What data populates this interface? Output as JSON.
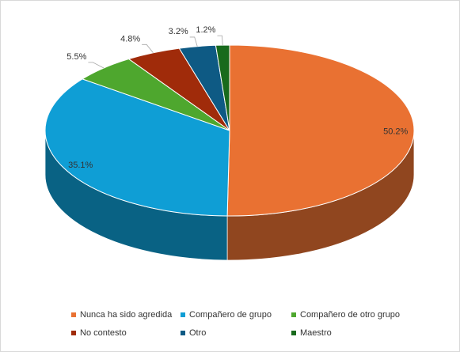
{
  "chart_data": {
    "type": "pie",
    "title": "",
    "categories": [
      "Nunca ha sido agredida",
      "Compañero de grupo",
      "Compañero de otro grupo",
      "No contesto",
      "Otro",
      "Maestro"
    ],
    "values": [
      50.2,
      35.1,
      5.5,
      4.8,
      3.2,
      1.2
    ],
    "data_labels": [
      "50.2%",
      "35.1%",
      "5.5%",
      "4.8%",
      "3.2%",
      "1.2%"
    ],
    "colors": [
      "#e97132",
      "#0f9ed5",
      "#4ea72e",
      "#a02b0a",
      "#0e5a84",
      "#186a1c"
    ],
    "legend_position": "bottom",
    "style": "3d-pie"
  }
}
